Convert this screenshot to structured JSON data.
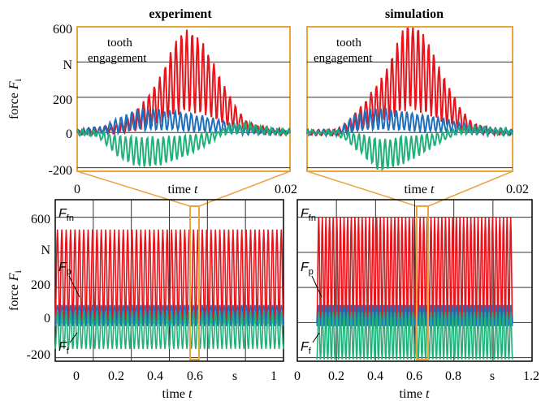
{
  "chart_data": [
    {
      "id": "top_left",
      "type": "line",
      "title": "experiment",
      "ylabel": "force",
      "ylabel_var": "F",
      "ylabel_sub": "i",
      "yunit": "N",
      "xlabel": "time",
      "xlabel_var": "t",
      "xlim": [
        0,
        0.02
      ],
      "ylim": [
        -220,
        600
      ],
      "yticks": [
        "600",
        "200",
        "0",
        "-200"
      ],
      "xtick_labels": [
        "0",
        "0.02"
      ],
      "annotation": [
        "tooth",
        "engagement"
      ],
      "series": [
        {
          "color": "#e8141b",
          "x": [
            0.0,
            0.002,
            0.004,
            0.006,
            0.008,
            0.009,
            0.01,
            0.011,
            0.012,
            0.013,
            0.014,
            0.015,
            0.016,
            0.018,
            0.02
          ],
          "values": [
            0,
            10,
            30,
            120,
            280,
            420,
            500,
            480,
            420,
            320,
            200,
            110,
            40,
            10,
            0
          ]
        },
        {
          "color": "#1f6fbd",
          "x": [
            0.0,
            0.002,
            0.004,
            0.006,
            0.008,
            0.01,
            0.012,
            0.014,
            0.016,
            0.018,
            0.02
          ],
          "values": [
            0,
            15,
            60,
            110,
            100,
            90,
            70,
            40,
            20,
            10,
            0
          ]
        },
        {
          "color": "#22b07a",
          "x": [
            0.0,
            0.002,
            0.004,
            0.006,
            0.008,
            0.01,
            0.012,
            0.014,
            0.016,
            0.018,
            0.02
          ],
          "values": [
            0,
            -10,
            -120,
            -160,
            -150,
            -110,
            -60,
            20,
            40,
            15,
            0
          ]
        }
      ]
    },
    {
      "id": "top_right",
      "type": "line",
      "title": "simulation",
      "xlabel": "time",
      "xlabel_var": "t",
      "xlim": [
        0,
        0.02
      ],
      "ylim": [
        -220,
        600
      ],
      "xtick_labels": [
        "0.02"
      ],
      "annotation": [
        "tooth",
        "engagement"
      ],
      "series": [
        {
          "color": "#e8141b",
          "x": [
            0.0,
            0.003,
            0.005,
            0.007,
            0.008,
            0.009,
            0.01,
            0.011,
            0.012,
            0.013,
            0.014,
            0.015,
            0.016,
            0.018,
            0.02
          ],
          "values": [
            0,
            0,
            100,
            240,
            330,
            470,
            560,
            500,
            420,
            300,
            200,
            100,
            40,
            5,
            0
          ]
        },
        {
          "color": "#1f6fbd",
          "x": [
            0.0,
            0.003,
            0.005,
            0.007,
            0.009,
            0.011,
            0.013,
            0.015,
            0.017,
            0.02
          ],
          "values": [
            0,
            0,
            90,
            110,
            95,
            80,
            60,
            40,
            15,
            0
          ]
        },
        {
          "color": "#22b07a",
          "x": [
            0.0,
            0.003,
            0.005,
            0.007,
            0.009,
            0.011,
            0.013,
            0.015,
            0.017,
            0.02
          ],
          "values": [
            0,
            0,
            -80,
            -180,
            -150,
            -100,
            -40,
            20,
            20,
            0
          ]
        }
      ]
    },
    {
      "id": "bottom_left",
      "type": "line",
      "ylabel": "force",
      "ylabel_var": "F",
      "ylabel_sub": "i",
      "yunit": "N",
      "xlabel": "time",
      "xlabel_var": "t",
      "xunit": "s",
      "xlim": [
        0,
        1
      ],
      "ylim": [
        -220,
        700
      ],
      "yticks": [
        "600",
        "200",
        "0",
        "-200"
      ],
      "xticks": [
        "0",
        "0.2",
        "0.4",
        "0.6",
        "1"
      ],
      "series_labels": [
        {
          "var": "F",
          "sub": "fn"
        },
        {
          "var": "F",
          "sub": "p"
        },
        {
          "var": "F",
          "sub": "f"
        }
      ],
      "series": [
        {
          "name": "Ffn",
          "color": "#e8141b",
          "low": 0,
          "high": 530
        },
        {
          "name": "Fp",
          "color": "#1f6fbd",
          "low": -20,
          "high": 100
        },
        {
          "name": "Ff",
          "color": "#22b07a",
          "low": -150,
          "high": 60
        }
      ],
      "cycles": 52
    },
    {
      "id": "bottom_right",
      "type": "line",
      "xlabel": "time",
      "xlabel_var": "t",
      "xunit": "s",
      "xlim": [
        0,
        1.2
      ],
      "ylim": [
        -220,
        700
      ],
      "xticks": [
        "0",
        "0.2",
        "0.4",
        "0.6",
        "0.8",
        "1.2"
      ],
      "series_labels": [
        {
          "var": "F",
          "sub": "fn"
        },
        {
          "var": "F",
          "sub": "p"
        },
        {
          "var": "F",
          "sub": "f"
        }
      ],
      "series": [
        {
          "name": "Ffn",
          "color": "#e8141b",
          "low": 0,
          "high": 600
        },
        {
          "name": "Fp",
          "color": "#1f6fbd",
          "low": -20,
          "high": 100
        },
        {
          "name": "Ff",
          "color": "#22b07a",
          "low": -210,
          "high": 60
        }
      ],
      "cycles": 54
    }
  ],
  "colors": {
    "highlight": "#e8a53b",
    "grid": "#333333",
    "frame": "#000000"
  }
}
